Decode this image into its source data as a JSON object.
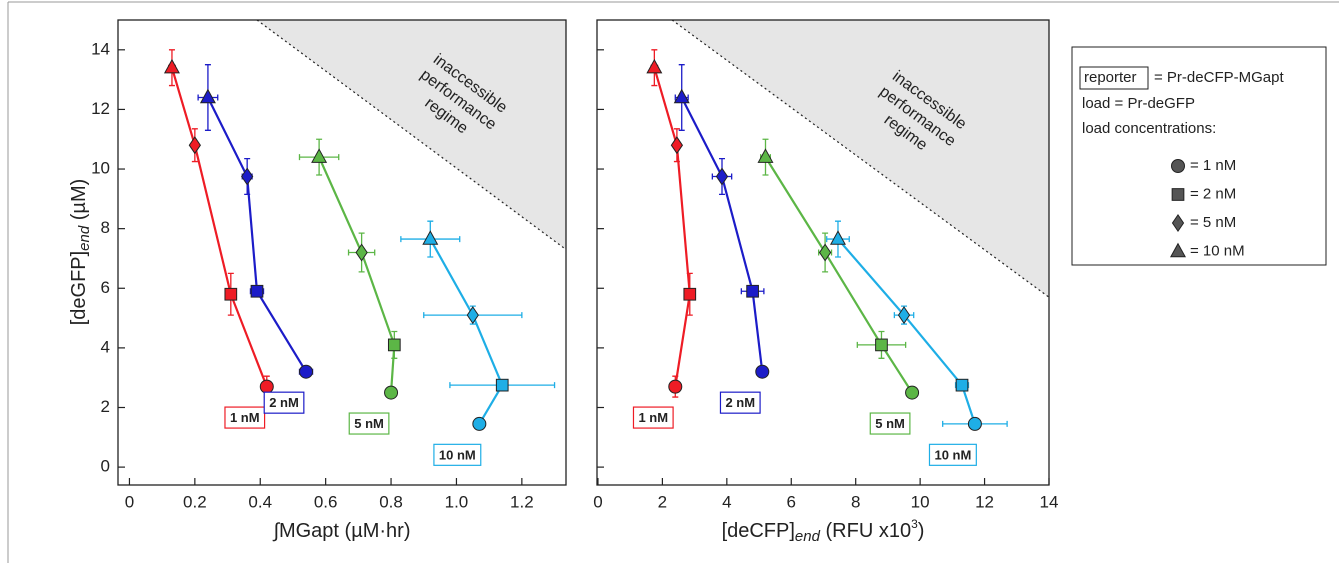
{
  "chart_data": [
    {
      "type": "line",
      "xlabel_parts": [
        "∫MGapt (µM·hr)"
      ],
      "ylabel_parts": [
        "[deGFP]",
        "end",
        " (µM)"
      ],
      "xlim": [
        -0.035,
        1.335
      ],
      "ylim": [
        -0.6,
        15
      ],
      "xticks": [
        0,
        0.2,
        0.4,
        0.6,
        0.8,
        {
          "value": 1,
          "label": "1.0"
        },
        1.2
      ],
      "yticks": [
        0,
        2,
        4,
        6,
        8,
        10,
        12,
        14
      ],
      "ytick_labels": true,
      "region": {
        "x": [
          0.39,
          1.335
        ],
        "y": [
          15,
          7.3
        ],
        "text": [
          "inaccessible",
          "performance",
          "regime"
        ]
      },
      "series": [
        {
          "name": "1 nM",
          "color": "#ee1c25",
          "markers": [
            "circle",
            "square",
            "diamond",
            "triangle"
          ],
          "x": [
            0.42,
            0.31,
            0.2,
            0.13
          ],
          "values": [
            2.7,
            5.8,
            10.8,
            13.4
          ],
          "xerr": [
            0.01,
            0.015,
            0.01,
            0.01
          ],
          "yerr": [
            0.35,
            0.7,
            0.55,
            0.6
          ]
        },
        {
          "name": "2 nM",
          "color": "#1c1cc8",
          "markers": [
            "circle",
            "square",
            "diamond",
            "triangle"
          ],
          "x": [
            0.54,
            0.39,
            0.36,
            0.24
          ],
          "values": [
            3.2,
            5.9,
            9.75,
            12.4
          ],
          "xerr": [
            0.02,
            0.02,
            0.015,
            0.03
          ],
          "yerr": [
            0.1,
            0.15,
            0.6,
            1.1
          ]
        },
        {
          "name": "5 nM",
          "color": "#5cb646",
          "markers": [
            "circle",
            "square",
            "diamond",
            "triangle"
          ],
          "x": [
            0.8,
            0.81,
            0.71,
            0.58
          ],
          "values": [
            2.5,
            4.1,
            7.2,
            10.4
          ],
          "xerr": [
            0.01,
            0.01,
            0.04,
            0.06
          ],
          "yerr": [
            0.1,
            0.45,
            0.65,
            0.6
          ]
        },
        {
          "name": "10 nM",
          "color": "#1eaee6",
          "markers": [
            "circle",
            "square",
            "diamond",
            "triangle"
          ],
          "x": [
            1.07,
            1.14,
            1.05,
            0.92
          ],
          "values": [
            1.45,
            2.75,
            5.1,
            7.65
          ],
          "xerr": [
            0.01,
            0.16,
            0.15,
            0.09
          ],
          "yerr": [
            0.1,
            0.1,
            0.3,
            0.6
          ]
        }
      ]
    },
    {
      "type": "line",
      "xlabel_parts": [
        "[deCFP]",
        "end",
        " (RFU x10",
        "3",
        ")"
      ],
      "xlim": [
        -0.03,
        14
      ],
      "ylim": [
        -0.6,
        15
      ],
      "xticks": [
        0,
        2,
        4,
        6,
        8,
        10,
        12,
        14
      ],
      "yticks": [
        0,
        2,
        4,
        6,
        8,
        10,
        12,
        14
      ],
      "ytick_labels": false,
      "region": {
        "x": [
          2.3,
          14
        ],
        "y": [
          15,
          5.7
        ],
        "text": [
          "inaccessible",
          "performance",
          "regime"
        ]
      },
      "series": [
        {
          "name": "1 nM",
          "color": "#ee1c25",
          "markers": [
            "circle",
            "square",
            "diamond",
            "triangle"
          ],
          "x": [
            2.4,
            2.85,
            2.45,
            1.75
          ],
          "values": [
            2.7,
            5.8,
            10.8,
            13.4
          ],
          "xerr": [
            0.1,
            0.1,
            0.1,
            0.1
          ],
          "yerr": [
            0.35,
            0.7,
            0.55,
            0.6
          ]
        },
        {
          "name": "2 nM",
          "color": "#1c1cc8",
          "markers": [
            "circle",
            "square",
            "diamond",
            "triangle"
          ],
          "x": [
            5.1,
            4.8,
            3.85,
            2.6
          ],
          "values": [
            3.2,
            5.9,
            9.75,
            12.4
          ],
          "xerr": [
            0.15,
            0.35,
            0.3,
            0.2
          ],
          "yerr": [
            0.1,
            0.15,
            0.6,
            1.1
          ]
        },
        {
          "name": "5 nM",
          "color": "#5cb646",
          "markers": [
            "circle",
            "square",
            "diamond",
            "triangle"
          ],
          "x": [
            9.75,
            8.8,
            7.05,
            5.2
          ],
          "values": [
            2.5,
            4.1,
            7.2,
            10.4
          ],
          "xerr": [
            0.15,
            0.75,
            0.2,
            0.15
          ],
          "yerr": [
            0.1,
            0.45,
            0.65,
            0.6
          ]
        },
        {
          "name": "10 nM",
          "color": "#1eaee6",
          "markers": [
            "circle",
            "square",
            "diamond",
            "triangle"
          ],
          "x": [
            11.7,
            11.3,
            9.5,
            7.45
          ],
          "values": [
            1.45,
            2.75,
            5.1,
            7.65
          ],
          "xerr": [
            1.0,
            0.2,
            0.3,
            0.35
          ],
          "yerr": [
            0.1,
            0.1,
            0.3,
            0.6
          ]
        }
      ]
    }
  ],
  "legend": {
    "reporter_key": "reporter",
    "reporter_value": "= Pr-deCFP-MGapt",
    "lines": [
      "load = Pr-deGFP",
      "load concentrations:"
    ],
    "marker_color": "#555555",
    "markers": [
      {
        "shape": "circle",
        "label": "= 1 nM"
      },
      {
        "shape": "square",
        "label": "= 2 nM"
      },
      {
        "shape": "diamond",
        "label": "= 5 nM"
      },
      {
        "shape": "triangle",
        "label": "= 10 nM"
      }
    ]
  }
}
